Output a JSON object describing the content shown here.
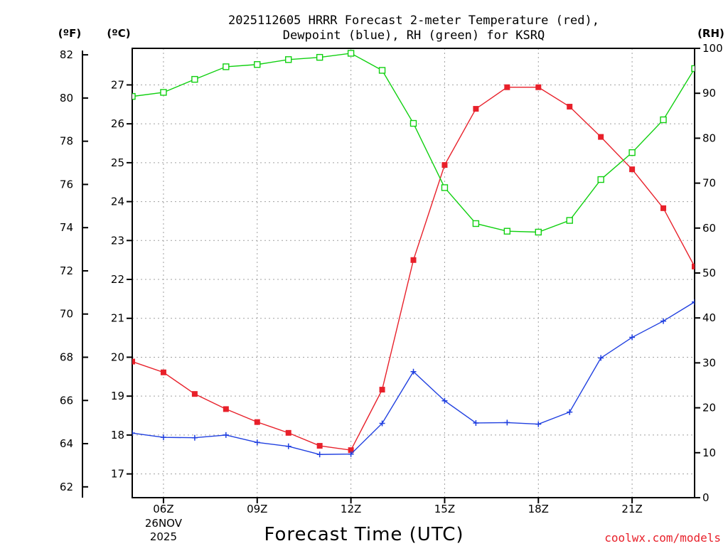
{
  "title_line1": "2025112605 HRRR Forecast 2-meter Temperature (red),",
  "title_line2": "Dewpoint (blue), RH (green) for KSRQ",
  "credit": "coolwx.com/models",
  "colors": {
    "temperature": "#e8202a",
    "dewpoint": "#1f3fe0",
    "rh": "#10d010",
    "grid": "#a0a0a0"
  },
  "chart_data": {
    "type": "line",
    "xlabel": "Forecast Time (UTC)",
    "x": [
      5,
      6,
      7,
      8,
      9,
      10,
      11,
      12,
      13,
      14,
      15,
      16,
      17,
      18,
      19,
      20,
      21,
      22,
      23
    ],
    "xlim": [
      5,
      23
    ],
    "x_ticks": [
      {
        "x": 6,
        "label": "06Z",
        "sub1": "26NOV",
        "sub2": "2025"
      },
      {
        "x": 9,
        "label": "09Z"
      },
      {
        "x": 12,
        "label": "12Z"
      },
      {
        "x": 15,
        "label": "15Z"
      },
      {
        "x": 18,
        "label": "18Z"
      },
      {
        "x": 21,
        "label": "21Z"
      }
    ],
    "axes": {
      "fahrenheit": {
        "label": "(ºF)",
        "ylim": [
          61.5,
          82.3
        ],
        "ticks": [
          "62",
          "64",
          "66",
          "68",
          "70",
          "72",
          "74",
          "76",
          "78",
          "80",
          "82"
        ]
      },
      "celsius": {
        "label": "(ºC)",
        "ylim": [
          16.39,
          27.94
        ],
        "ticks": [
          "17",
          "18",
          "19",
          "20",
          "21",
          "22",
          "23",
          "24",
          "25",
          "26",
          "27"
        ]
      },
      "rh": {
        "label": "(RH)",
        "ylim": [
          0,
          100
        ],
        "ticks": [
          "0",
          "10",
          "20",
          "30",
          "40",
          "50",
          "60",
          "70",
          "80",
          "90",
          "100"
        ]
      }
    },
    "series": [
      {
        "name": "Temperature",
        "color": "#e8202a",
        "axis": "fahrenheit",
        "marker": "filled-square",
        "values": [
          67.8,
          67.3,
          66.3,
          65.6,
          65.0,
          64.5,
          63.9,
          63.7,
          66.5,
          72.5,
          76.9,
          79.5,
          80.5,
          80.5,
          79.6,
          78.2,
          76.7,
          74.9,
          72.2
        ]
      },
      {
        "name": "Dewpoint",
        "color": "#1f3fe0",
        "axis": "celsius",
        "marker": "plus",
        "values": [
          18.05,
          17.94,
          17.93,
          18.0,
          17.81,
          17.71,
          17.5,
          17.51,
          18.3,
          19.63,
          18.88,
          18.31,
          18.32,
          18.28,
          18.59,
          19.98,
          20.51,
          20.93,
          21.42
        ]
      },
      {
        "name": "RH",
        "color": "#10d010",
        "axis": "rh",
        "marker": "open-square",
        "values": [
          89.3,
          90.2,
          93.1,
          95.9,
          96.4,
          97.5,
          98.0,
          98.9,
          95.1,
          83.3,
          69.0,
          61.0,
          59.3,
          59.1,
          61.7,
          70.8,
          76.8,
          84.1,
          95.5
        ]
      }
    ]
  }
}
